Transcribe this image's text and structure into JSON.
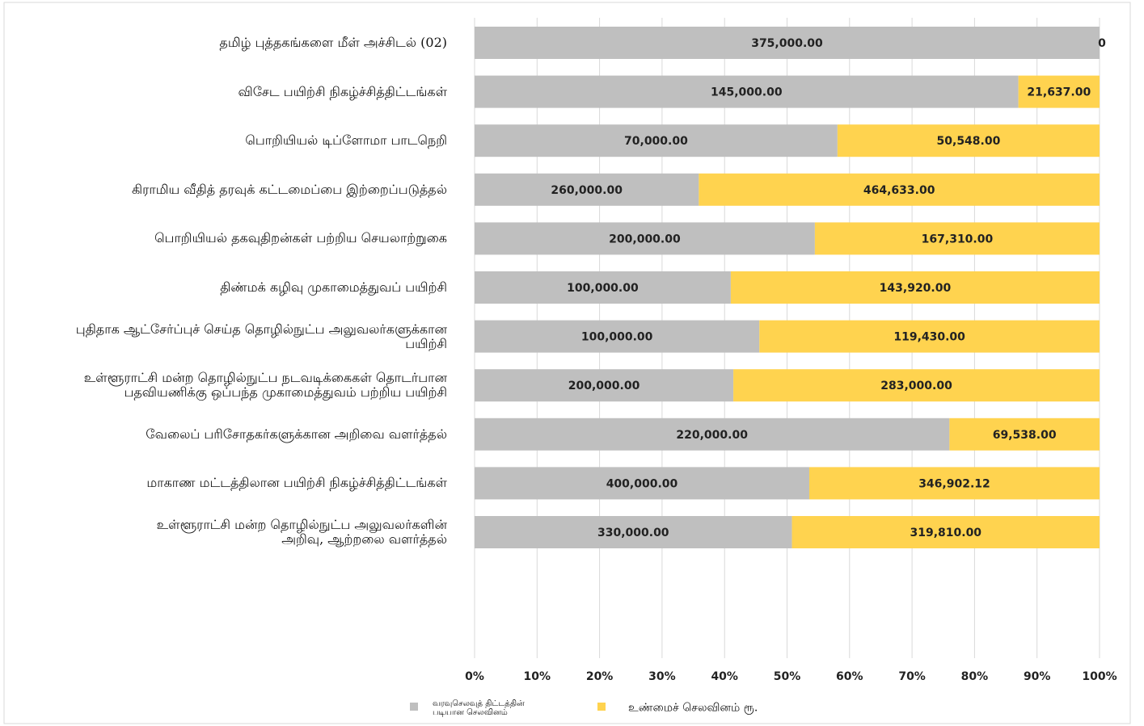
{
  "chart_data": {
    "type": "stacked-percent-barh",
    "categories": [
      "தமிழ் புத்தகங்களை மீள் அச்சிடல் (02)",
      "விசேட பயிற்சி நிகழ்ச்சித்திட்டங்கள்",
      "பொறியியல் டிப்ளோமா பாடநெறி",
      "கிராமிய வீதித் தரவுக் கட்டமைப்பை இற்றைப்படுத்தல்",
      "பொறியியல் தகவுதிறன்கள் பற்றிய செயலாற்றுகை",
      "திண்மக் கழிவு முகாமைத்துவப் பயிற்சி",
      "புதிதாக ஆட்சேர்ப்புச் செய்த தொழில்நுட்ப அலுவலர்களுக்கான\nபயிற்சி",
      "உள்ளூராட்சி மன்ற தொழில்நுட்ப நடவடிக்கைகள் தொடர்பான\nபதவியணிக்கு ஒப்பந்த முகாமைத்துவம் பற்றிய பயிற்சி",
      "வேலைப் பரிசோதகர்களுக்கான அறிவை வளர்த்தல்",
      "மாகாண மட்டத்திலான பயிற்சி நிகழ்ச்சித்திட்டங்கள்",
      "உள்ளூராட்சி மன்ற தொழில்நுட்ப அலுவலர்களின்\nஅறிவு, ஆற்றலை வளர்த்தல்"
    ],
    "series": [
      {
        "name": "வரவுசெலவுத் திட்டத்தின்\nபடியான செலவினம்",
        "color": "#bfbfbf",
        "values": [
          375000,
          145000,
          70000,
          260000,
          200000,
          100000,
          100000,
          200000,
          220000,
          400000,
          330000
        ],
        "value_labels": [
          "375,000.00",
          "145,000.00",
          "70,000.00",
          "260,000.00",
          "200,000.00",
          "100,000.00",
          "100,000.00",
          "200,000.00",
          "220,000.00",
          "400,000.00",
          "330,000.00"
        ]
      },
      {
        "name": "உண்மைச் செலவினம் ரூ.",
        "color": "#ffd34f",
        "values": [
          0,
          21637,
          50548,
          464633,
          167310,
          143920,
          119430,
          283000,
          69538,
          346902.12,
          319810
        ],
        "value_labels": [
          "0",
          "21,637.00",
          "50,548.00",
          "464,633.00",
          "167,310.00",
          "143,920.00",
          "119,430.00",
          "283,000.00",
          "69,538.00",
          "346,902.12",
          "319,810.00"
        ]
      }
    ],
    "xlim": [
      0,
      100
    ],
    "xticks": [
      {
        "value": 0,
        "label": "0%"
      },
      {
        "value": 10,
        "label": "10%"
      },
      {
        "value": 20,
        "label": "20%"
      },
      {
        "value": 30,
        "label": "30%"
      },
      {
        "value": 40,
        "label": "40%"
      },
      {
        "value": 50,
        "label": "50%"
      },
      {
        "value": 60,
        "label": "60%"
      },
      {
        "value": 70,
        "label": "70%"
      },
      {
        "value": 80,
        "label": "80%"
      },
      {
        "value": 90,
        "label": "90%"
      },
      {
        "value": 100,
        "label": "100%"
      }
    ],
    "grid": true,
    "legend": "bottom"
  }
}
